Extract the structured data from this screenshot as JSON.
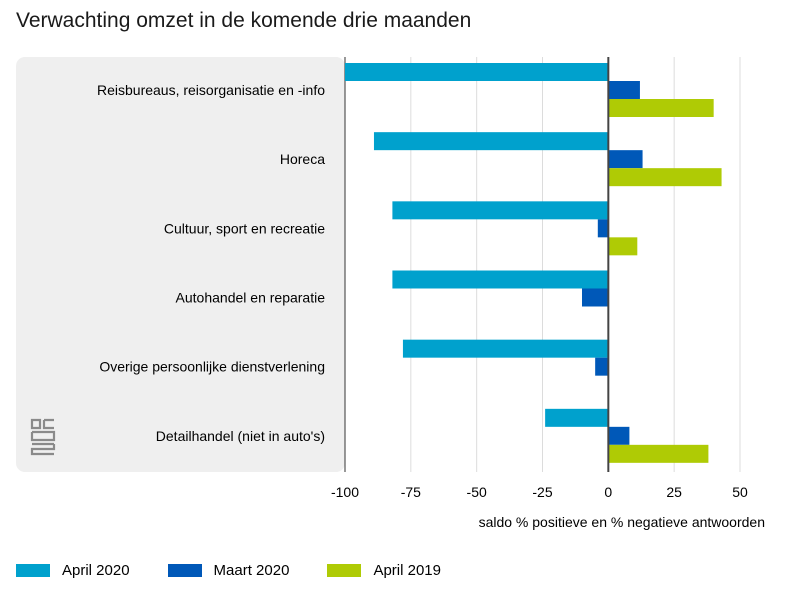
{
  "chart_data": {
    "type": "bar",
    "orientation": "horizontal",
    "title": "Verwachting omzet in de komende drie maanden",
    "xlabel": "saldo % positieve en % negatieve antwoorden",
    "ylabel": "",
    "xlim": [
      -100,
      50
    ],
    "xticks": [
      -100,
      -75,
      -50,
      -25,
      0,
      25,
      50
    ],
    "grid": true,
    "legend_position": "bottom-left",
    "categories": [
      "Reisbureaus, reisorganisatie en -info",
      "Horeca",
      "Cultuur, sport en recreatie",
      "Autohandel en reparatie",
      "Overige persoonlijke dienstverlening",
      "Detailhandel (niet in auto's)"
    ],
    "series": [
      {
        "name": "April 2020",
        "color": "#00a1cd",
        "values": [
          -100,
          -89,
          -82,
          -82,
          -78,
          -24
        ]
      },
      {
        "name": "Maart 2020",
        "color": "#0058b8",
        "values": [
          12,
          13,
          -4,
          -10,
          -5,
          8
        ]
      },
      {
        "name": "April 2019",
        "color": "#afcb05",
        "values": [
          40,
          43,
          11,
          null,
          null,
          38
        ]
      }
    ]
  }
}
